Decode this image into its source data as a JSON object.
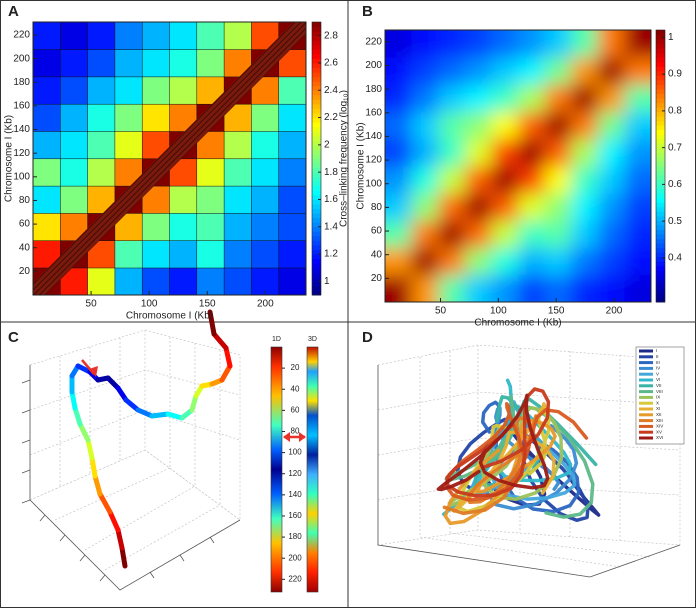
{
  "chart_data": [
    {
      "type": "heatmap",
      "panel": "A",
      "xlabel": "Chromosome I (Kb)",
      "ylabel": "Chromosome I (Kb)",
      "colorbar_label": "Cross–linking frequency (log₁₀)",
      "xlim": [
        0,
        235
      ],
      "ylim": [
        0,
        231
      ],
      "xticks": [
        50,
        100,
        150,
        200
      ],
      "yticks": [
        20,
        40,
        60,
        80,
        100,
        120,
        140,
        160,
        180,
        200,
        220
      ],
      "clim": [
        0.9,
        2.9
      ],
      "cticks": [
        1,
        1.2,
        1.4,
        1.6,
        1.8,
        2,
        2.2,
        2.4,
        2.6,
        2.8
      ],
      "values": [
        [
          2.9,
          2.6,
          2.1,
          1.5,
          1.3,
          1.2,
          1.4,
          1.3,
          1.2,
          1.1
        ],
        [
          2.6,
          2.9,
          2.5,
          1.8,
          1.6,
          1.5,
          1.7,
          1.4,
          1.3,
          1.2
        ],
        [
          2.2,
          2.4,
          2.9,
          2.3,
          1.9,
          1.7,
          1.8,
          1.5,
          1.4,
          1.3
        ],
        [
          1.6,
          1.9,
          2.3,
          2.9,
          2.4,
          2.0,
          1.9,
          1.6,
          1.5,
          1.3
        ],
        [
          1.9,
          1.7,
          2.0,
          2.4,
          2.9,
          2.5,
          2.1,
          1.8,
          1.6,
          1.4
        ],
        [
          1.5,
          1.6,
          1.8,
          2.1,
          2.5,
          2.9,
          2.4,
          2.0,
          1.7,
          1.5
        ],
        [
          1.3,
          1.5,
          1.7,
          1.9,
          2.2,
          2.4,
          2.9,
          2.3,
          1.9,
          1.6
        ],
        [
          1.2,
          1.3,
          1.5,
          1.6,
          1.9,
          2.0,
          2.3,
          2.9,
          2.4,
          1.8
        ],
        [
          1.1,
          1.2,
          1.3,
          1.5,
          1.6,
          1.7,
          1.9,
          2.4,
          2.9,
          2.5
        ],
        [
          1.2,
          1.1,
          1.2,
          1.4,
          1.5,
          1.6,
          1.8,
          2.0,
          2.5,
          2.9
        ]
      ]
    },
    {
      "type": "heatmap",
      "panel": "B",
      "xlabel": "Chromosome I (Kb)",
      "ylabel": "Chromosome I (Kb)",
      "xlim": [
        2,
        232
      ],
      "ylim": [
        0,
        230
      ],
      "xticks": [
        50,
        100,
        150,
        200
      ],
      "yticks": [
        20,
        40,
        60,
        80,
        100,
        120,
        140,
        160,
        180,
        200,
        220
      ],
      "clim": [
        0.28,
        1.02
      ],
      "cticks": [
        0.4,
        0.5,
        0.6,
        0.7,
        0.8,
        0.9,
        1
      ],
      "smooth": true,
      "values": [
        [
          1.0,
          0.82,
          0.62,
          0.52,
          0.48,
          0.42,
          0.45,
          0.4,
          0.38,
          0.35
        ],
        [
          0.82,
          1.0,
          0.84,
          0.66,
          0.58,
          0.5,
          0.52,
          0.46,
          0.42,
          0.38
        ],
        [
          0.62,
          0.84,
          1.0,
          0.85,
          0.7,
          0.6,
          0.62,
          0.52,
          0.45,
          0.4
        ],
        [
          0.52,
          0.66,
          0.85,
          1.0,
          0.86,
          0.72,
          0.66,
          0.55,
          0.48,
          0.42
        ],
        [
          0.48,
          0.58,
          0.7,
          0.86,
          1.0,
          0.88,
          0.74,
          0.6,
          0.52,
          0.45
        ],
        [
          0.42,
          0.5,
          0.6,
          0.72,
          0.88,
          1.0,
          0.86,
          0.68,
          0.55,
          0.48
        ],
        [
          0.45,
          0.52,
          0.62,
          0.66,
          0.74,
          0.86,
          1.0,
          0.84,
          0.64,
          0.52
        ],
        [
          0.4,
          0.46,
          0.52,
          0.55,
          0.6,
          0.68,
          0.84,
          1.0,
          0.82,
          0.62
        ],
        [
          0.38,
          0.42,
          0.45,
          0.48,
          0.52,
          0.55,
          0.64,
          0.82,
          1.0,
          0.84
        ],
        [
          0.35,
          0.38,
          0.4,
          0.42,
          0.45,
          0.48,
          0.52,
          0.62,
          0.84,
          1.0
        ]
      ]
    },
    {
      "type": "line3d",
      "panel": "C",
      "colorbar_labels": [
        "1D",
        "3D"
      ],
      "ylim": [
        0,
        232
      ],
      "yticks": [
        20,
        40,
        60,
        80,
        100,
        120,
        140,
        160,
        180,
        200,
        220
      ]
    },
    {
      "type": "tubes3d",
      "panel": "D",
      "series": [
        {
          "name": "I",
          "color": "#1b2a8a"
        },
        {
          "name": "II",
          "color": "#2344a6"
        },
        {
          "name": "III",
          "color": "#2c66c2"
        },
        {
          "name": "IV",
          "color": "#3a8cd2"
        },
        {
          "name": "V",
          "color": "#42a8dc"
        },
        {
          "name": "VI",
          "color": "#2fb8cc"
        },
        {
          "name": "VII",
          "color": "#38b4a6"
        },
        {
          "name": "VIII",
          "color": "#5cb889"
        },
        {
          "name": "IX",
          "color": "#9dc25c"
        },
        {
          "name": "X",
          "color": "#d6c93a"
        },
        {
          "name": "XI",
          "color": "#e8b030"
        },
        {
          "name": "XII",
          "color": "#e89a2a"
        },
        {
          "name": "XIII",
          "color": "#e07a24"
        },
        {
          "name": "XIV",
          "color": "#d95a20"
        },
        {
          "name": "XV",
          "color": "#c83a1c"
        },
        {
          "name": "XVI",
          "color": "#9e1b14"
        }
      ]
    }
  ]
}
